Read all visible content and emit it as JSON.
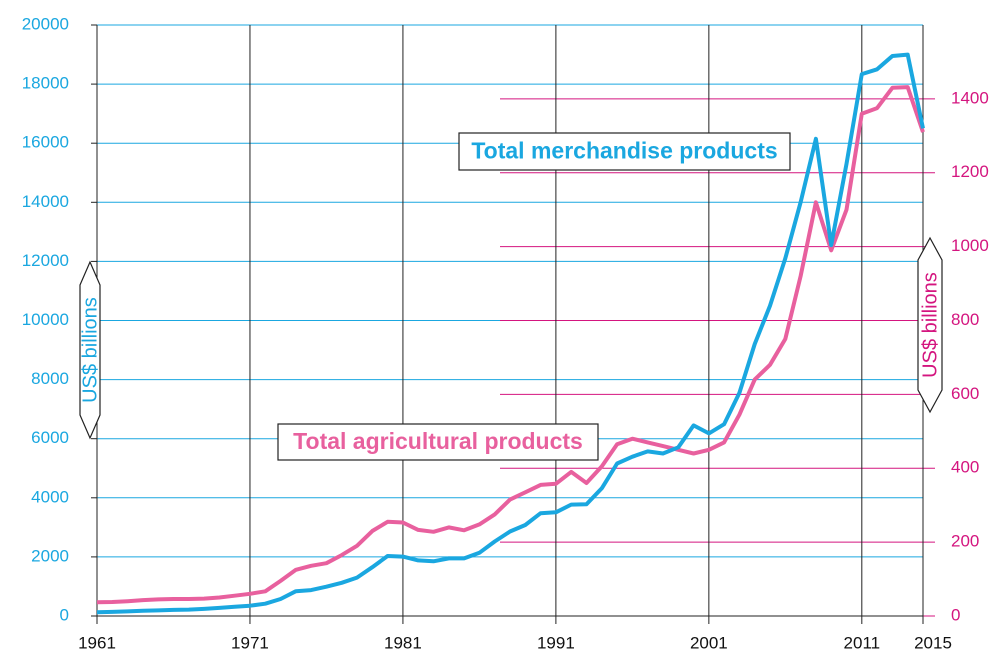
{
  "chart_data": {
    "type": "line",
    "ylabel": "US$ billions",
    "y2label": "US$ billions",
    "annotations": [
      "Total merchandise products",
      "Total agricultural products"
    ],
    "x": [
      1961,
      1962,
      1963,
      1964,
      1965,
      1966,
      1967,
      1968,
      1969,
      1970,
      1971,
      1972,
      1973,
      1974,
      1975,
      1976,
      1977,
      1978,
      1979,
      1980,
      1981,
      1982,
      1983,
      1984,
      1985,
      1986,
      1987,
      1988,
      1989,
      1990,
      1991,
      1992,
      1993,
      1994,
      1995,
      1996,
      1997,
      1998,
      1999,
      2000,
      2001,
      2002,
      2003,
      2004,
      2005,
      2006,
      2007,
      2008,
      2009,
      2010,
      2011,
      2012,
      2013,
      2014,
      2015
    ],
    "series": [
      {
        "name": "Total merchandise products",
        "color": "#1aa7e0",
        "axis": "y",
        "values": [
          130,
          140,
          155,
          175,
          190,
          205,
          215,
          240,
          275,
          315,
          350,
          415,
          575,
          840,
          875,
          990,
          1125,
          1300,
          1650,
          2030,
          2010,
          1880,
          1850,
          1950,
          1950,
          2140,
          2520,
          2860,
          3080,
          3480,
          3510,
          3770,
          3780,
          4320,
          5160,
          5390,
          5570,
          5500,
          5710,
          6450,
          6180,
          6490,
          7550,
          9200,
          10500,
          12100,
          14000,
          16150,
          12550,
          15300,
          18340,
          18500,
          18950,
          19000,
          16500
        ]
      },
      {
        "name": "Total agricultural products",
        "color": "#e8609e",
        "axis": "y2",
        "values": [
          37,
          38,
          40,
          43,
          45,
          46,
          46,
          47,
          50,
          55,
          60,
          67,
          95,
          125,
          136,
          143,
          165,
          190,
          230,
          255,
          253,
          233,
          228,
          240,
          232,
          248,
          275,
          315,
          335,
          355,
          358,
          390,
          360,
          405,
          465,
          480,
          470,
          460,
          450,
          440,
          450,
          470,
          545,
          640,
          680,
          750,
          920,
          1120,
          990,
          1100,
          1360,
          1375,
          1430,
          1432,
          1310
        ]
      }
    ],
    "xlim": [
      1961,
      2015
    ],
    "xticks": [
      1961,
      1971,
      1981,
      1991,
      2001,
      2011,
      2015
    ],
    "ylim": [
      0,
      20000
    ],
    "yticks": [
      0,
      2000,
      4000,
      6000,
      8000,
      10000,
      12000,
      14000,
      16000,
      18000,
      20000
    ],
    "y2lim": [
      0,
      1600
    ],
    "y2ticks": [
      0,
      200,
      400,
      600,
      800,
      1000,
      1200,
      1400
    ],
    "grid": true
  }
}
